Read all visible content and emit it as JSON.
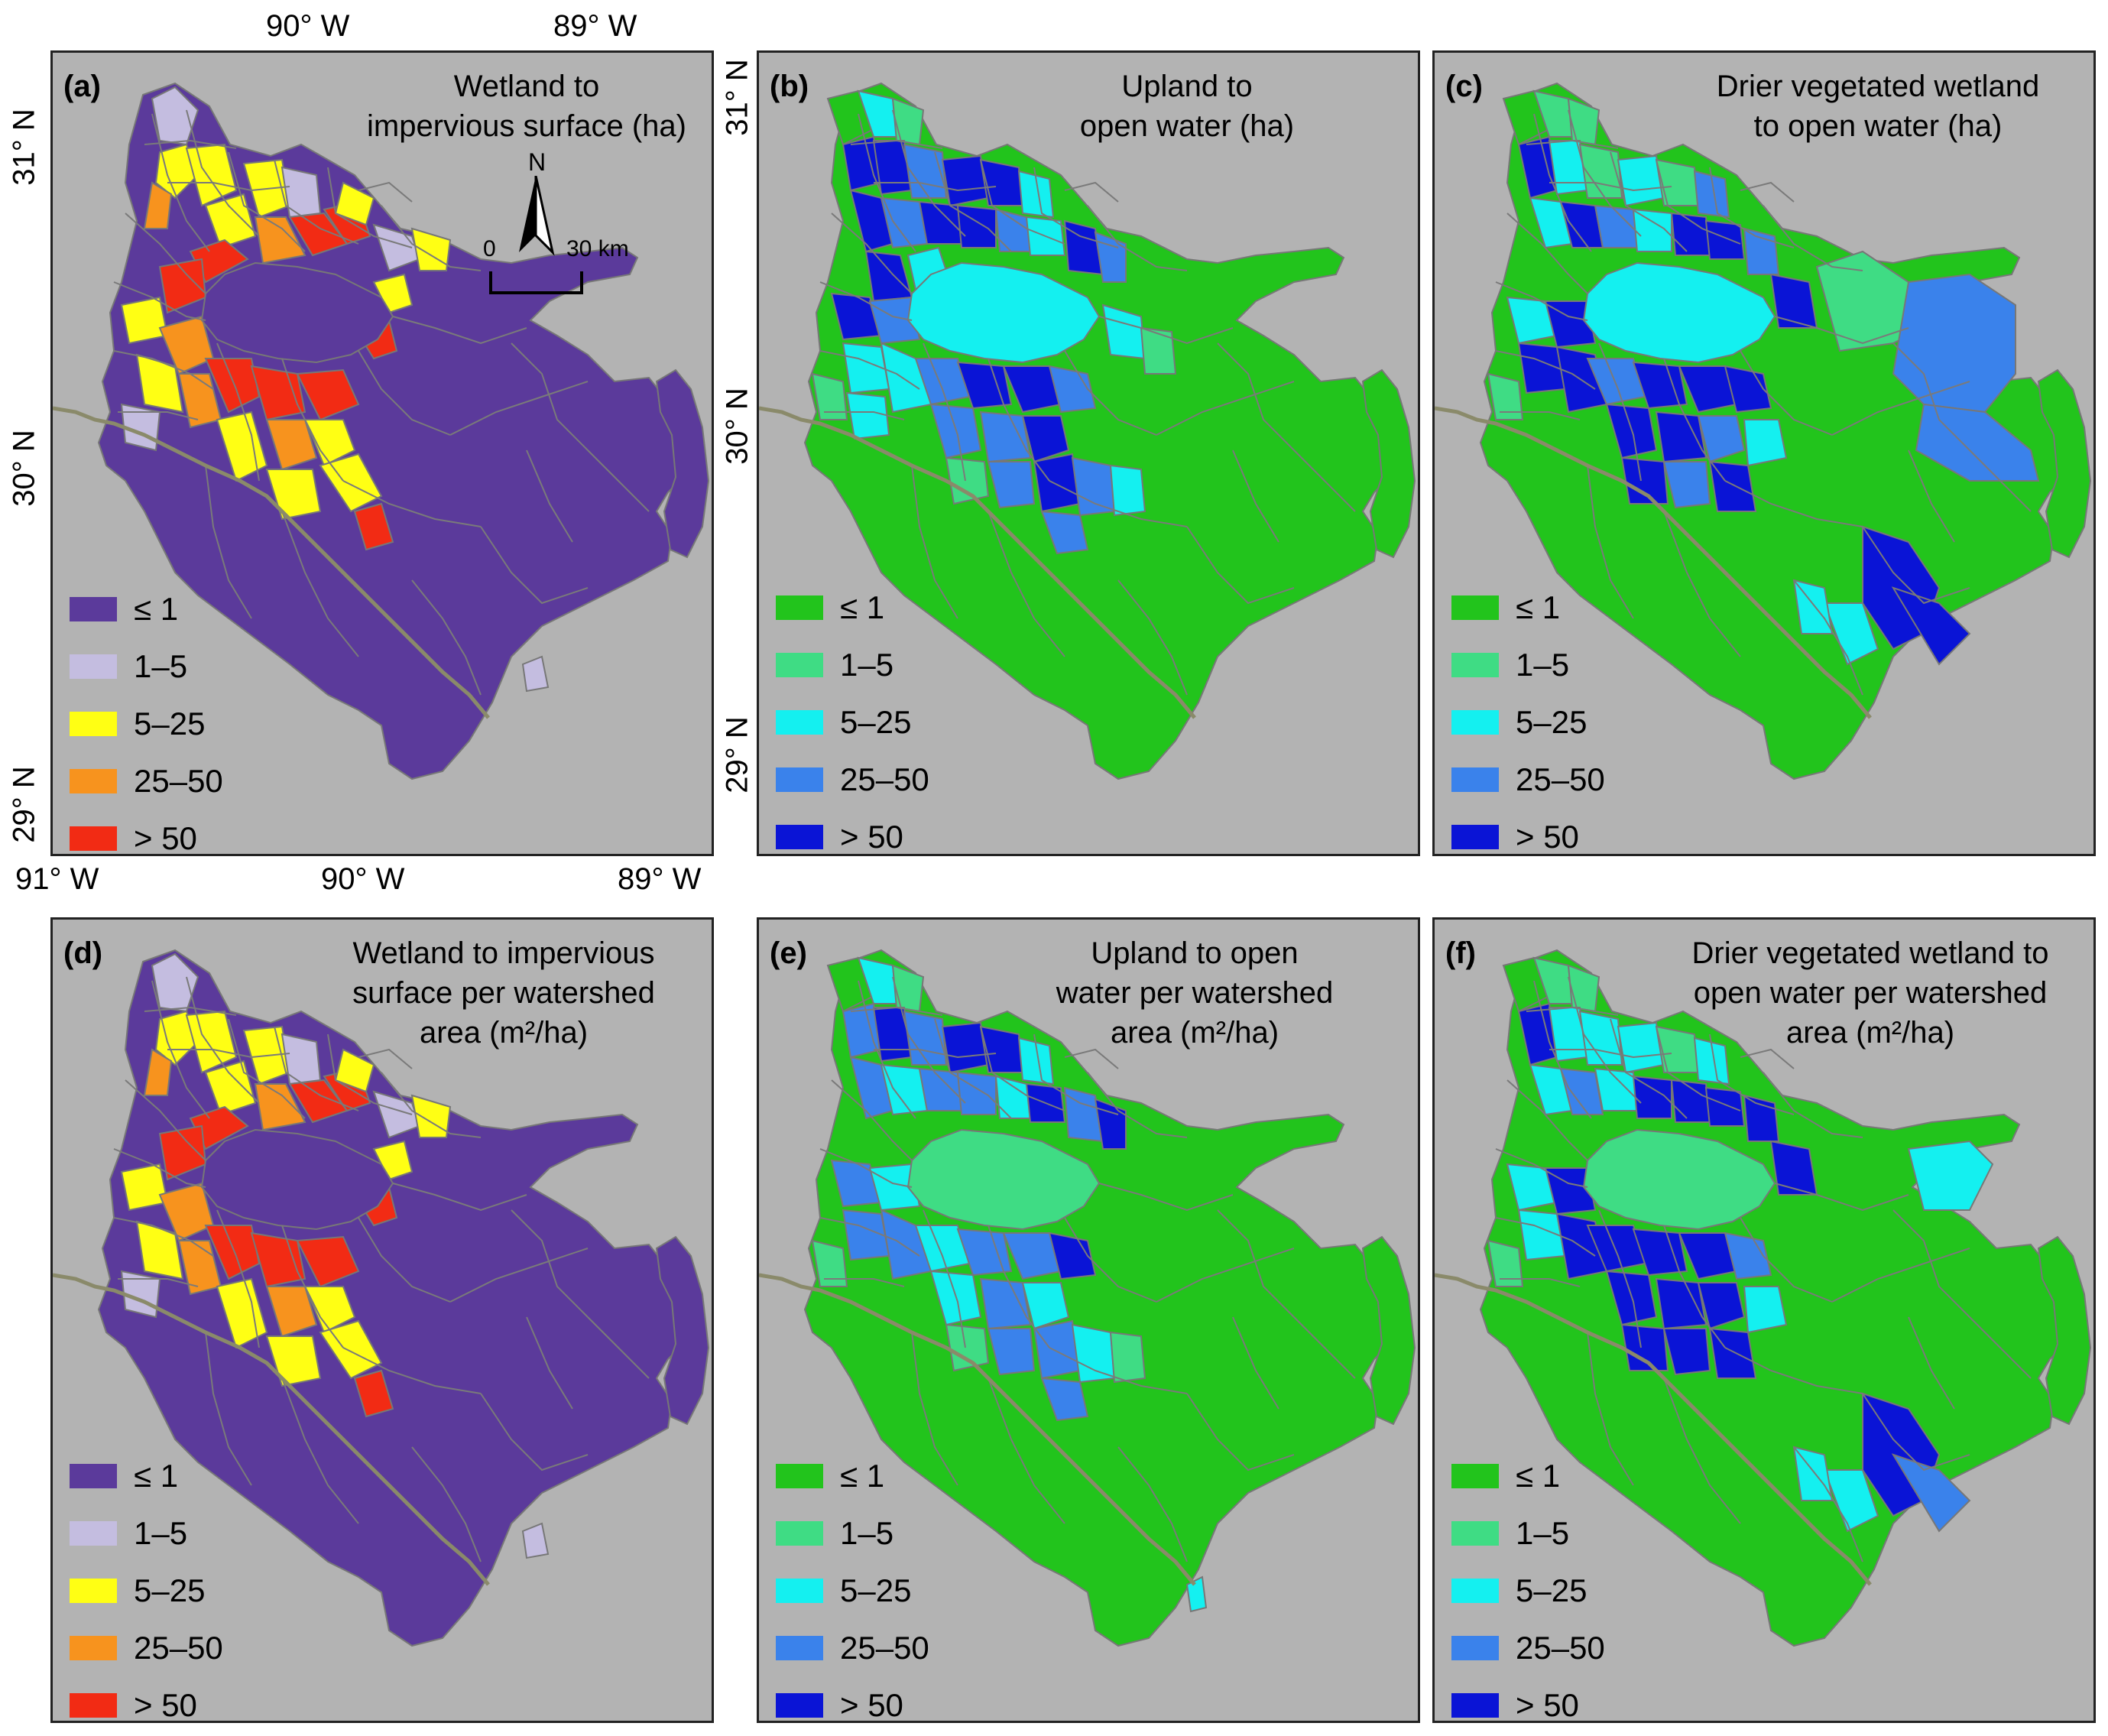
{
  "legend_classes": [
    "≤ 1",
    "1–5",
    "5–25",
    "25–50",
    "> 50"
  ],
  "palettes": {
    "impervious": [
      "#5b3a9b",
      "#c4bde0",
      "#ffff14",
      "#f7931e",
      "#f22b14"
    ],
    "water": [
      "#22c41c",
      "#3fdc84",
      "#14f0f0",
      "#3a82eb",
      "#0a14d6"
    ]
  },
  "panels": [
    {
      "id": "a",
      "label": "(a)",
      "title": [
        "Wetland to",
        "impervious surface (ha)"
      ],
      "palette": "impervious"
    },
    {
      "id": "b",
      "label": "(b)",
      "title": [
        "Upland to",
        "open water (ha)"
      ],
      "palette": "water"
    },
    {
      "id": "c",
      "label": "(c)",
      "title": [
        "Drier vegetated wetland",
        "to open water (ha)"
      ],
      "palette": "water"
    },
    {
      "id": "d",
      "label": "(d)",
      "title": [
        "Wetland to impervious",
        "surface per watershed",
        "area (m²/ha)"
      ],
      "palette": "impervious"
    },
    {
      "id": "e",
      "label": "(e)",
      "title": [
        "Upland to open",
        "water per watershed",
        "area (m²/ha)"
      ],
      "palette": "water"
    },
    {
      "id": "f",
      "label": "(f)",
      "title": [
        "Drier vegetated wetland to",
        "open water per watershed",
        "area (m²/ha)"
      ],
      "palette": "water"
    }
  ],
  "axes": {
    "top_lon": [
      "90° W",
      "89° W"
    ],
    "bottom_lon": [
      "91° W",
      "90° W",
      "89° W"
    ],
    "left_lat": [
      "31° N",
      "30° N",
      "29° N"
    ],
    "right_lat": [
      "31° N",
      "30° N",
      "29° N"
    ]
  },
  "north_arrow": {
    "label": "N"
  },
  "scale_bar": {
    "start": "0",
    "end": "30 km"
  }
}
